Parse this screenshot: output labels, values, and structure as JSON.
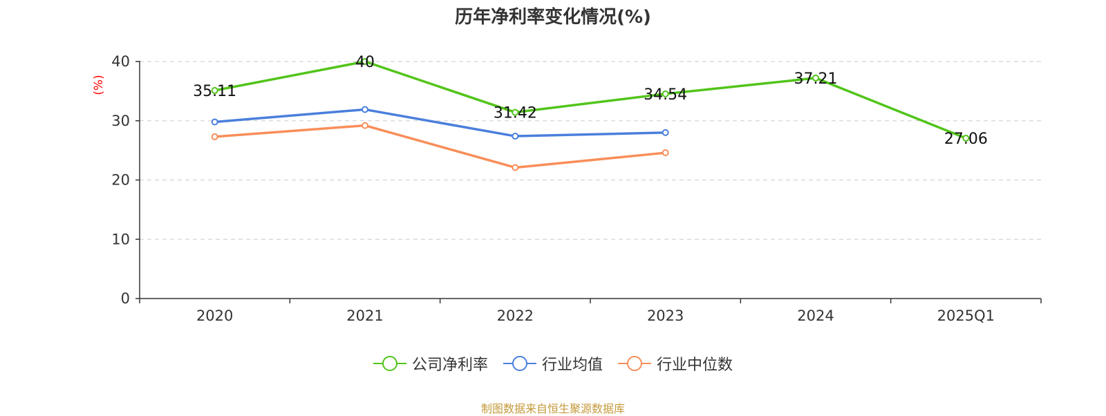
{
  "colors": {
    "company": "#52c41a",
    "industry_avg": "#4a7fdc",
    "industry_median": "#f88e59",
    "source": "#c49a3a"
  },
  "chart_data": {
    "type": "line",
    "title": "历年净利率变化情况(%)",
    "ylabel": "(%)",
    "xlabel": "",
    "categories": [
      "2020",
      "2021",
      "2022",
      "2023",
      "2024",
      "2025Q1"
    ],
    "ylim": [
      0,
      40
    ],
    "yticks": [
      0,
      10,
      20,
      30,
      40
    ],
    "grid": true,
    "legend_position": "bottom",
    "series": [
      {
        "name": "公司净利率",
        "color": "#52c41a",
        "values": [
          35.11,
          40,
          31.42,
          34.54,
          37.21,
          27.06
        ],
        "labels": [
          "35.11",
          "40",
          "31.42",
          "34.54",
          "37.21",
          "27.06"
        ]
      },
      {
        "name": "行业均值",
        "color": "#4a7fdc",
        "values": [
          29.8,
          31.9,
          27.4,
          28.0,
          null,
          null
        ]
      },
      {
        "name": "行业中位数",
        "color": "#f88e59",
        "values": [
          27.3,
          29.2,
          22.1,
          24.6,
          null,
          null
        ]
      }
    ]
  },
  "source": "制图数据来自恒生聚源数据库"
}
